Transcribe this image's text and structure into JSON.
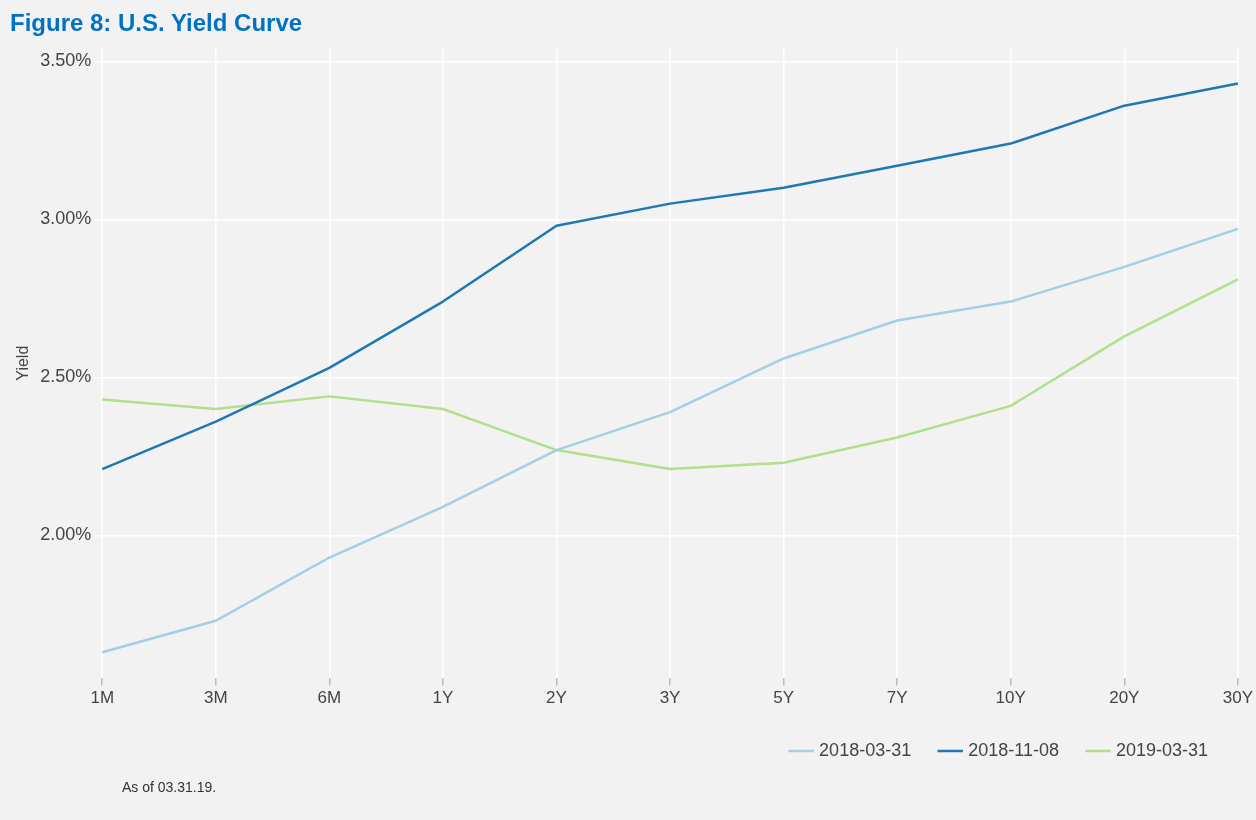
{
  "chart_data": {
    "type": "line",
    "title": "Figure 8: U.S. Yield Curve",
    "ylabel": "Yield",
    "categories": [
      "1M",
      "3M",
      "6M",
      "1Y",
      "2Y",
      "3Y",
      "5Y",
      "7Y",
      "10Y",
      "20Y",
      "30Y"
    ],
    "series": [
      {
        "name": "2018-03-31",
        "color": "#a6cee3",
        "values": [
          1.63,
          1.73,
          1.93,
          2.09,
          2.27,
          2.39,
          2.56,
          2.68,
          2.74,
          2.85,
          2.97
        ]
      },
      {
        "name": "2018-11-08",
        "color": "#1f78b4",
        "values": [
          2.21,
          2.36,
          2.53,
          2.74,
          2.98,
          3.05,
          3.1,
          3.17,
          3.24,
          3.36,
          3.43
        ]
      },
      {
        "name": "2019-03-31",
        "color": "#b2df8a",
        "values": [
          2.43,
          2.4,
          2.44,
          2.4,
          2.27,
          2.21,
          2.23,
          2.31,
          2.41,
          2.63,
          2.81
        ]
      }
    ],
    "ylim": [
      1.55,
      3.54
    ],
    "yticks": [
      {
        "value": 2,
        "label": "2.00%"
      },
      {
        "value": 2.5,
        "label": "2.50%"
      },
      {
        "value": 3,
        "label": "3.00%"
      },
      {
        "value": 3.5,
        "label": "3.50%"
      }
    ],
    "grid": true,
    "legend": "bottom right",
    "marker": "none",
    "line_style": "solid",
    "annotations": [
      "As of 03.31.19."
    ]
  }
}
